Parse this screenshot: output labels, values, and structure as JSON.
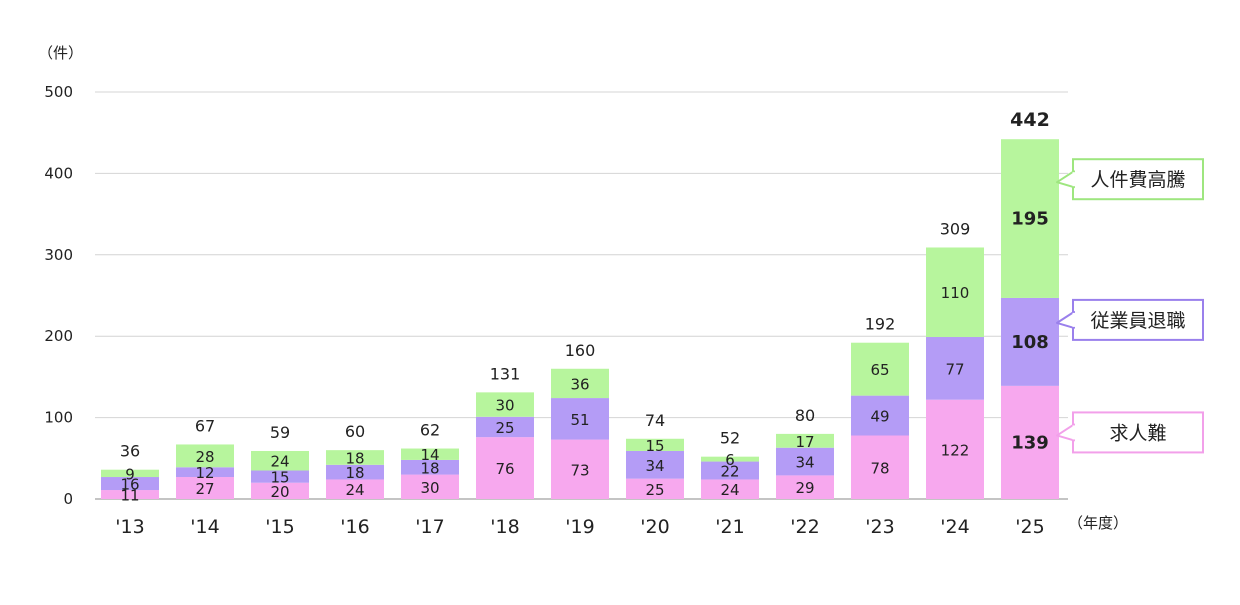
{
  "chart_data": {
    "type": "bar",
    "stacked": true,
    "categories": [
      "'13",
      "'14",
      "'15",
      "'16",
      "'17",
      "'18",
      "'19",
      "'20",
      "'21",
      "'22",
      "'23",
      "'24",
      "'25"
    ],
    "series": [
      {
        "name": "求人難",
        "color": "#f7a8ee",
        "values": [
          11,
          27,
          20,
          24,
          30,
          76,
          73,
          25,
          24,
          29,
          78,
          122,
          139
        ]
      },
      {
        "name": "従業員退職",
        "color": "#b49cf6",
        "values": [
          16,
          12,
          15,
          18,
          18,
          25,
          51,
          34,
          22,
          34,
          49,
          77,
          108
        ]
      },
      {
        "name": "人件費高騰",
        "color": "#b7f59d",
        "values": [
          9,
          28,
          24,
          18,
          14,
          30,
          36,
          15,
          6,
          17,
          65,
          110,
          195
        ]
      }
    ],
    "totals": [
      36,
      67,
      59,
      60,
      62,
      131,
      160,
      74,
      52,
      80,
      192,
      309,
      442
    ],
    "yticks": [
      0,
      100,
      200,
      300,
      400,
      500
    ],
    "ylim": [
      0,
      500
    ],
    "ylabel": "（件）",
    "xlabel": "（年度）",
    "grid": true,
    "legend": "callouts at right of last bar"
  }
}
